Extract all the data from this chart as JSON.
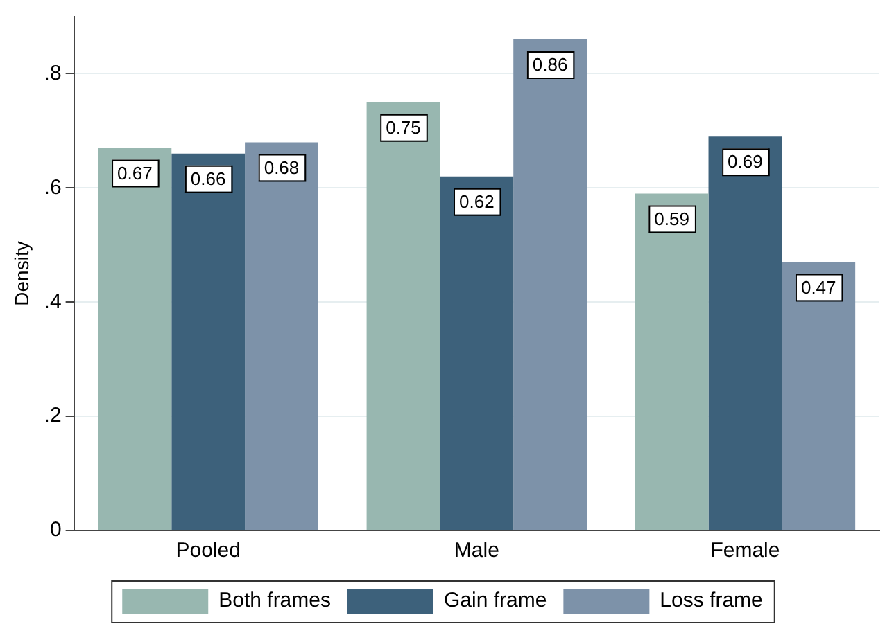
{
  "chart_data": {
    "type": "bar",
    "ylabel": "Density",
    "categories": [
      "Pooled",
      "Male",
      "Female"
    ],
    "series": [
      {
        "name": "Both frames",
        "color": "#98b7b0",
        "values": [
          0.67,
          0.75,
          0.59
        ]
      },
      {
        "name": "Gain frame",
        "color": "#3d617b",
        "values": [
          0.66,
          0.62,
          0.69
        ]
      },
      {
        "name": "Loss frame",
        "color": "#7d92a9",
        "values": [
          0.68,
          0.86,
          0.47
        ]
      }
    ],
    "ylim": [
      0,
      0.9
    ],
    "yticks": [
      {
        "value": 0,
        "label": "0"
      },
      {
        "value": 0.2,
        "label": ".2"
      },
      {
        "value": 0.4,
        "label": ".4"
      },
      {
        "value": 0.6,
        "label": ".6"
      },
      {
        "value": 0.8,
        "label": ".8"
      }
    ],
    "grid": "y",
    "legend": "bottom",
    "data_labels": true
  }
}
